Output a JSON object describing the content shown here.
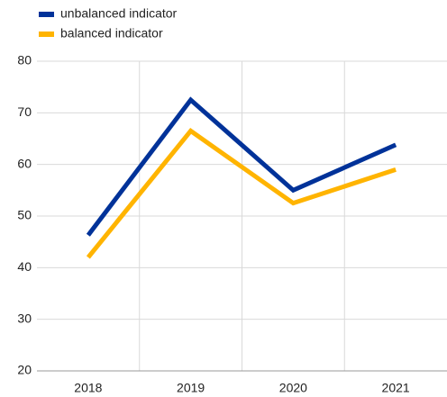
{
  "chart_data": {
    "type": "line",
    "categories": [
      "2018",
      "2019",
      "2020",
      "2021"
    ],
    "series": [
      {
        "name": "unbalanced indicator",
        "color": "#003299",
        "values": [
          46.3,
          72.5,
          55,
          63.8
        ]
      },
      {
        "name": "balanced indicator",
        "color": "#ffb400",
        "values": [
          42,
          66.5,
          52.5,
          59
        ]
      }
    ],
    "ylim": [
      20,
      80
    ],
    "yticks": [
      20,
      30,
      40,
      50,
      60,
      70,
      80
    ],
    "grid": true,
    "legend": "top-left"
  }
}
